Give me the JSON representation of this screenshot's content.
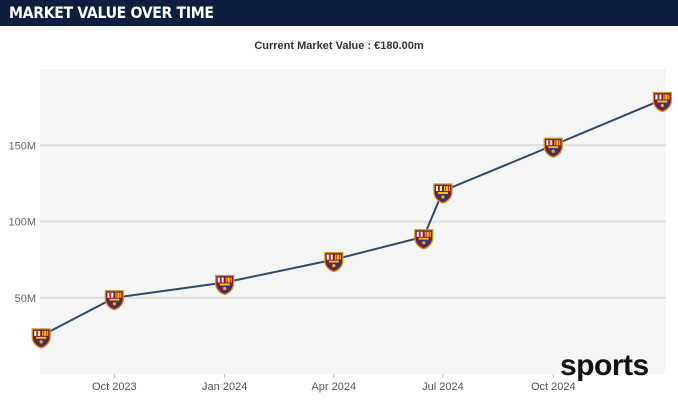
{
  "header": {
    "title": "MARKET VALUE OVER TIME"
  },
  "subtitle": "Current Market Value : €180.00m",
  "watermark": "sports",
  "colors": {
    "header_bg": "#0d1e3f",
    "plot_bg": "#f5f5f5",
    "gridline": "#dddddd",
    "line": "#2f4a68",
    "marker": "fc-barcelona-crest"
  },
  "chart_data": {
    "type": "line",
    "title": "Current Market Value : €180.00m",
    "xlabel": "",
    "ylabel": "",
    "x": [
      "2023-08-01",
      "2023-10-01",
      "2024-01-01",
      "2024-04-01",
      "2024-06-15",
      "2024-07-01",
      "2024-10-01",
      "2024-12-31"
    ],
    "values": [
      25,
      50,
      60,
      75,
      90,
      120,
      150,
      180
    ],
    "value_unit": "M",
    "x_ticks": [
      {
        "date": "2023-10-01",
        "label": "Oct 2023"
      },
      {
        "date": "2024-01-01",
        "label": "Jan 2024"
      },
      {
        "date": "2024-04-01",
        "label": "Apr 2024"
      },
      {
        "date": "2024-07-01",
        "label": "Jul 2024"
      },
      {
        "date": "2024-10-01",
        "label": "Oct 2024"
      }
    ],
    "y_ticks": [
      {
        "value": 50,
        "label": "50M"
      },
      {
        "value": 100,
        "label": "100M"
      },
      {
        "value": 150,
        "label": "150M"
      }
    ],
    "xlim": [
      "2023-07-31",
      "2025-01-03"
    ],
    "ylim": [
      0,
      200
    ],
    "grid": true,
    "legend": "none",
    "marker_icon": "fc-barcelona-crest"
  }
}
